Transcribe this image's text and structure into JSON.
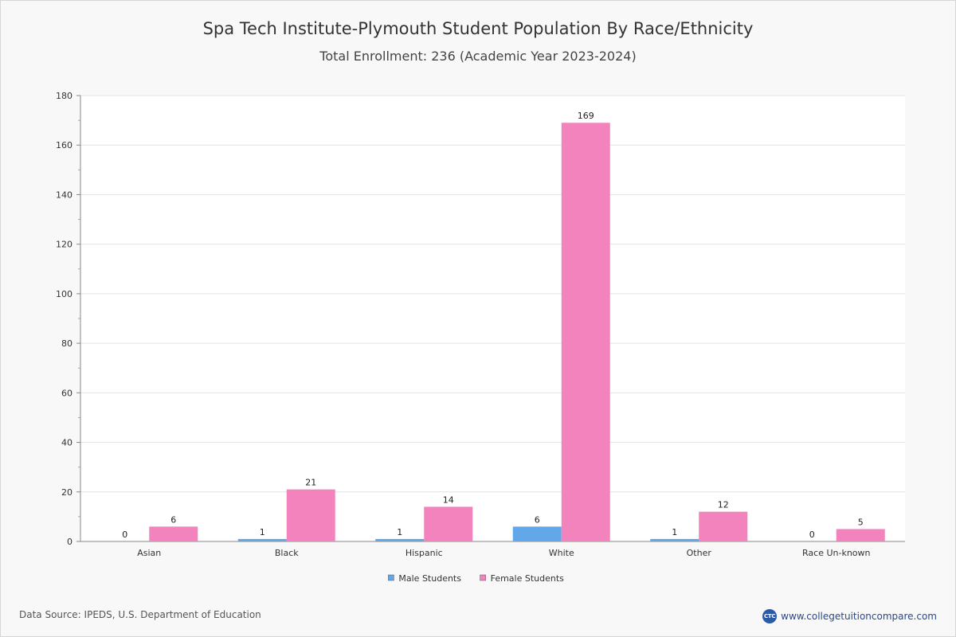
{
  "chart_data": {
    "type": "bar",
    "title": "Spa Tech Institute-Plymouth Student Population By Race/Ethnicity",
    "subtitle": "Total Enrollment: 236 (Academic Year 2023-2024)",
    "categories": [
      "Asian",
      "Black",
      "Hispanic",
      "White",
      "Other",
      "Race Un-known"
    ],
    "series": [
      {
        "name": "Male Students",
        "color": "#62a8e8",
        "values": [
          0,
          1,
          1,
          6,
          1,
          0
        ]
      },
      {
        "name": "Female Students",
        "color": "#f283bc",
        "values": [
          6,
          21,
          14,
          169,
          12,
          5
        ]
      }
    ],
    "ylim": [
      0,
      180
    ],
    "yticks": [
      0,
      20,
      40,
      60,
      80,
      100,
      120,
      140,
      160,
      180
    ],
    "xlabel": "",
    "ylabel": "",
    "grid": true,
    "legend_position": "bottom-center"
  },
  "footer": {
    "source": "Data Source: IPEDS, U.S. Department of Education",
    "brand_logo_text": "CTC",
    "brand_url": "www.collegetuitioncompare.com"
  }
}
